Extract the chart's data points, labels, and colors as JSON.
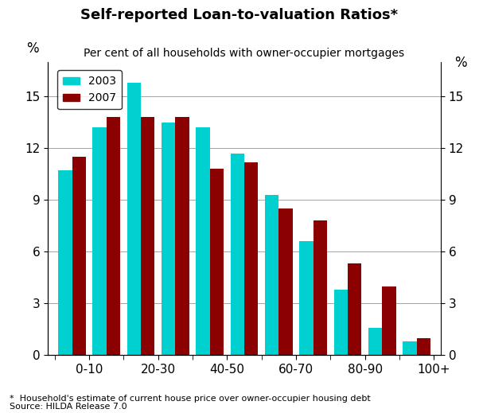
{
  "title": "Self-reported Loan-to-valuation Ratios*",
  "subtitle": "Per cent of all households with owner-occupier mortgages",
  "footnote": "*  Household's estimate of current house price over owner-occupier housing debt",
  "source": "Source: HILDA Release 7.0",
  "categories": [
    "0-10",
    "",
    "20-30",
    "",
    "40-50",
    "",
    "60-70",
    "",
    "80-90",
    "",
    "100+"
  ],
  "xtick_labels": [
    "0-10",
    "20-30",
    "40-50",
    "60-70",
    "80-90",
    "100+"
  ],
  "xtick_label_positions": [
    0.5,
    2.5,
    4.5,
    6.5,
    8.5,
    10.5
  ],
  "values_2003": [
    10.7,
    13.2,
    15.8,
    13.5,
    13.2,
    11.7,
    9.3,
    6.6,
    3.8,
    1.6,
    0.8
  ],
  "values_2007": [
    11.5,
    13.8,
    13.8,
    13.8,
    10.8,
    11.2,
    8.5,
    7.8,
    5.3,
    4.0,
    1.0
  ],
  "color_2003": "#00D0D0",
  "color_2007": "#8B0000",
  "ylabel_left": "%",
  "ylabel_right": "%",
  "ylim": [
    0,
    17
  ],
  "yticks": [
    0,
    3,
    6,
    9,
    12,
    15
  ],
  "legend_2003": "2003",
  "legend_2007": "2007",
  "bar_width": 0.4
}
